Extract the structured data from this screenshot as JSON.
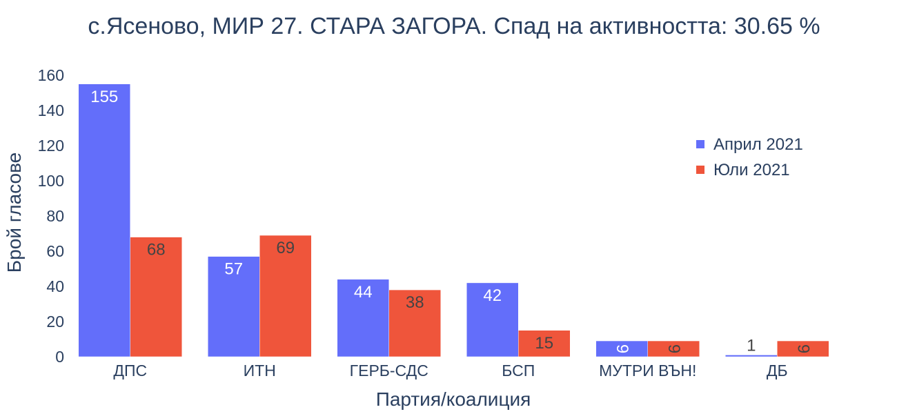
{
  "chart_data": {
    "type": "bar",
    "title": "с.Ясеново, МИР 27. СТАРА ЗАГОРА. Спад на активността: 30.65 %",
    "xlabel": "Партия/коалиция",
    "ylabel": "Брой гласове",
    "categories": [
      "ДПС",
      "ИТН",
      "ГЕРБ-СДС",
      "БСП",
      "МУТРИ ВЪН!",
      "ДБ"
    ],
    "series": [
      {
        "name": "Април 2021",
        "color": "#636efa",
        "values": [
          155,
          57,
          44,
          42,
          9,
          1
        ]
      },
      {
        "name": "Юли 2021",
        "color": "#ef553b",
        "values": [
          68,
          69,
          38,
          15,
          9,
          9
        ]
      }
    ],
    "ylim": [
      0,
      160
    ],
    "yticks": [
      0,
      20,
      40,
      60,
      80,
      100,
      120,
      140,
      160
    ],
    "grid": false,
    "legend_position": "top-right",
    "background": "#ffffff"
  }
}
